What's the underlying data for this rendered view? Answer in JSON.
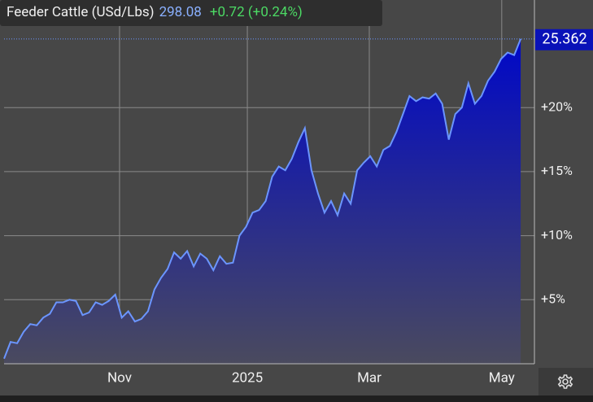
{
  "chart_data": {
    "type": "area",
    "title": "Feeder Cattle (USd/Lbs)",
    "price": "298.08",
    "change": "+0.72 (+0.24%)",
    "color": "#6b95ff",
    "x": [
      0,
      1,
      2,
      3,
      4,
      5,
      6,
      7,
      8,
      9,
      10,
      11,
      12,
      13,
      14,
      15,
      16,
      17,
      18,
      19,
      20,
      21,
      22,
      23,
      24,
      25,
      26,
      27,
      28,
      29,
      30,
      31,
      32,
      33,
      34,
      35,
      36,
      37,
      38,
      39,
      40,
      41,
      42,
      43,
      44,
      45,
      46,
      47,
      48,
      49,
      50,
      51,
      52,
      53,
      54,
      55,
      56,
      57,
      58,
      59,
      60,
      61,
      62,
      63,
      64,
      65,
      66,
      67,
      68,
      69,
      70,
      71,
      72,
      73,
      74,
      75,
      76,
      77,
      78,
      79
    ],
    "values": [
      0.4,
      1.7,
      1.6,
      2.5,
      3.1,
      3.0,
      3.6,
      3.9,
      4.8,
      4.8,
      5.0,
      4.9,
      3.8,
      4.0,
      4.8,
      4.6,
      4.9,
      5.4,
      3.6,
      4.1,
      3.3,
      3.5,
      4.1,
      5.8,
      6.7,
      7.4,
      8.7,
      8.2,
      8.8,
      7.6,
      8.6,
      8.2,
      7.3,
      8.4,
      7.8,
      7.9,
      10.0,
      10.7,
      11.8,
      12.0,
      12.7,
      14.6,
      15.4,
      15.1,
      16.0,
      17.3,
      18.4,
      15.1,
      13.3,
      11.8,
      12.7,
      11.6,
      13.3,
      12.5,
      15.1,
      15.7,
      16.2,
      15.4,
      16.7,
      17.0,
      18.1,
      19.5,
      20.9,
      20.5,
      20.8,
      20.7,
      21.1,
      20.3,
      17.5,
      19.5,
      20.0,
      21.9,
      20.3,
      20.9,
      22.1,
      22.8,
      23.8,
      24.3,
      24.1,
      25.362
    ],
    "xlim": [
      0,
      81.1
    ],
    "xticks": [
      {
        "value": 17.66,
        "label": "Nov"
      },
      {
        "value": 37.2,
        "label": "2025"
      },
      {
        "value": 55.85,
        "label": "Mar"
      },
      {
        "value": 76.1,
        "label": "May"
      }
    ],
    "ylim": [
      0,
      28.4
    ],
    "yticks": [
      {
        "value": 5,
        "label": "+5%"
      },
      {
        "value": 10,
        "label": "+10%"
      },
      {
        "value": 15,
        "label": "+15%"
      },
      {
        "value": 20,
        "label": "+20%"
      }
    ],
    "grid": true
  }
}
